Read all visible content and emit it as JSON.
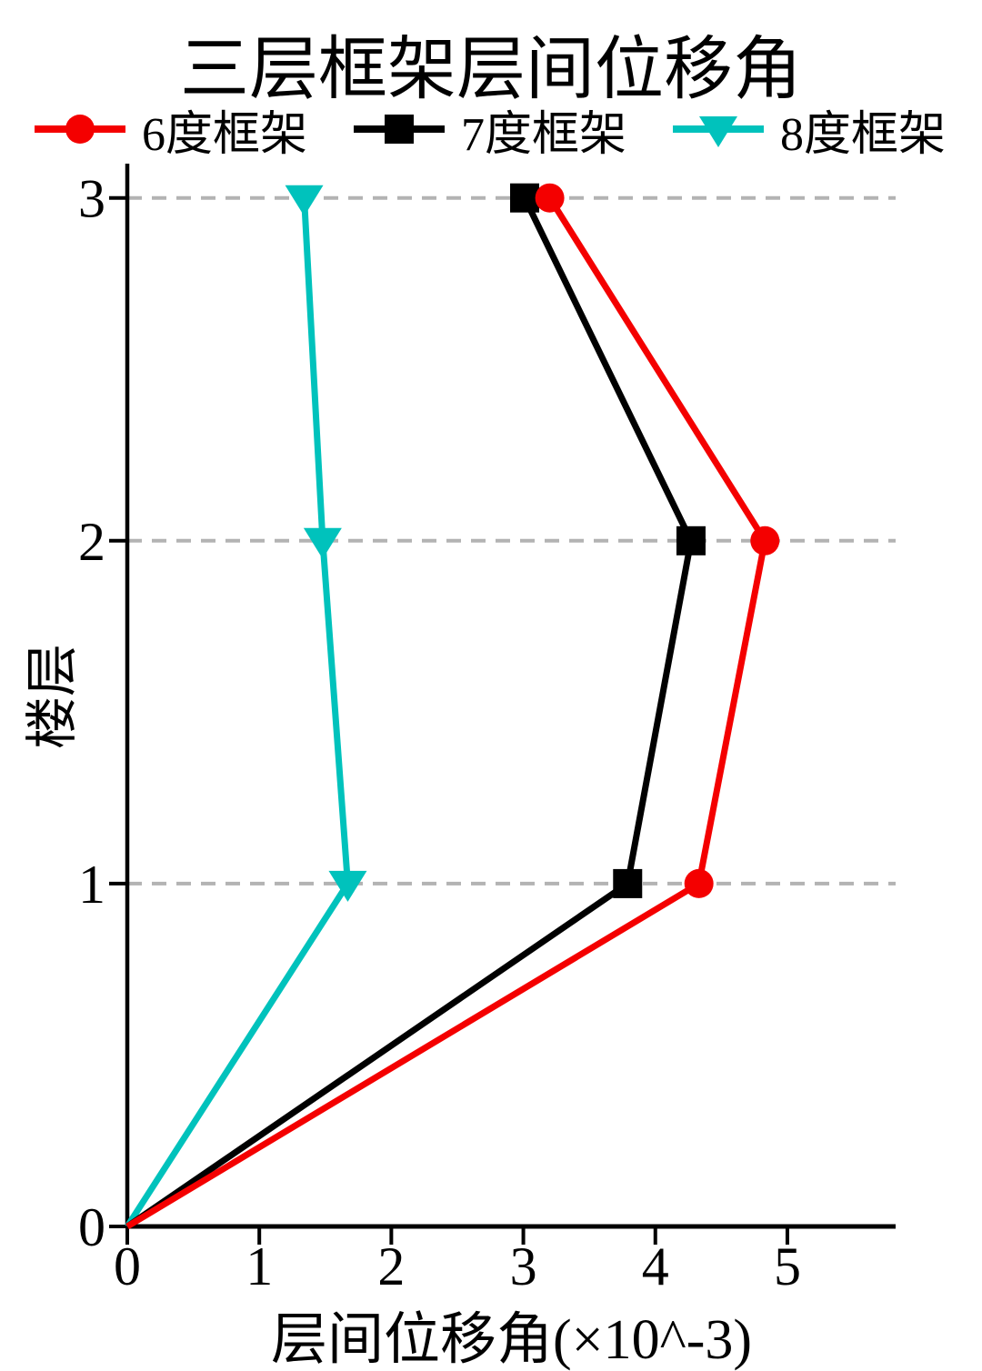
{
  "chart_data": {
    "type": "line",
    "title": "三层框架层间位移角",
    "xlabel": "层间位移角(×10^-3)",
    "ylabel": "楼层",
    "orientation": "profile: x = drift value, y = floor number",
    "xlim": [
      0,
      5.82
    ],
    "ylim": [
      0,
      3.1
    ],
    "xticks": [
      0,
      1,
      2,
      3,
      4,
      5
    ],
    "yticks": [
      0,
      1,
      2,
      3
    ],
    "grid": {
      "on": true,
      "axis": "y",
      "at": [
        1,
        2,
        3
      ],
      "style": "dashed",
      "color": "#b3b3b3"
    },
    "legend": {
      "position": "top",
      "orientation": "horizontal"
    },
    "categories_note": "floors (y axis): 0,1,2,3",
    "series": [
      {
        "name": "6度框架",
        "color": "#f40000",
        "marker": "circle",
        "floors": [
          0,
          1,
          2,
          3
        ],
        "values": [
          0,
          4.33,
          4.83,
          3.2
        ]
      },
      {
        "name": "7度框架",
        "color": "#000000",
        "marker": "square",
        "floors": [
          0,
          1,
          2,
          3
        ],
        "values": [
          0,
          3.79,
          4.27,
          3.01
        ]
      },
      {
        "name": "8度框架",
        "color": "#00c2bc",
        "marker": "triangle-down",
        "floors": [
          0,
          1,
          2,
          3
        ],
        "values": [
          0,
          1.67,
          1.48,
          1.34
        ]
      }
    ]
  }
}
